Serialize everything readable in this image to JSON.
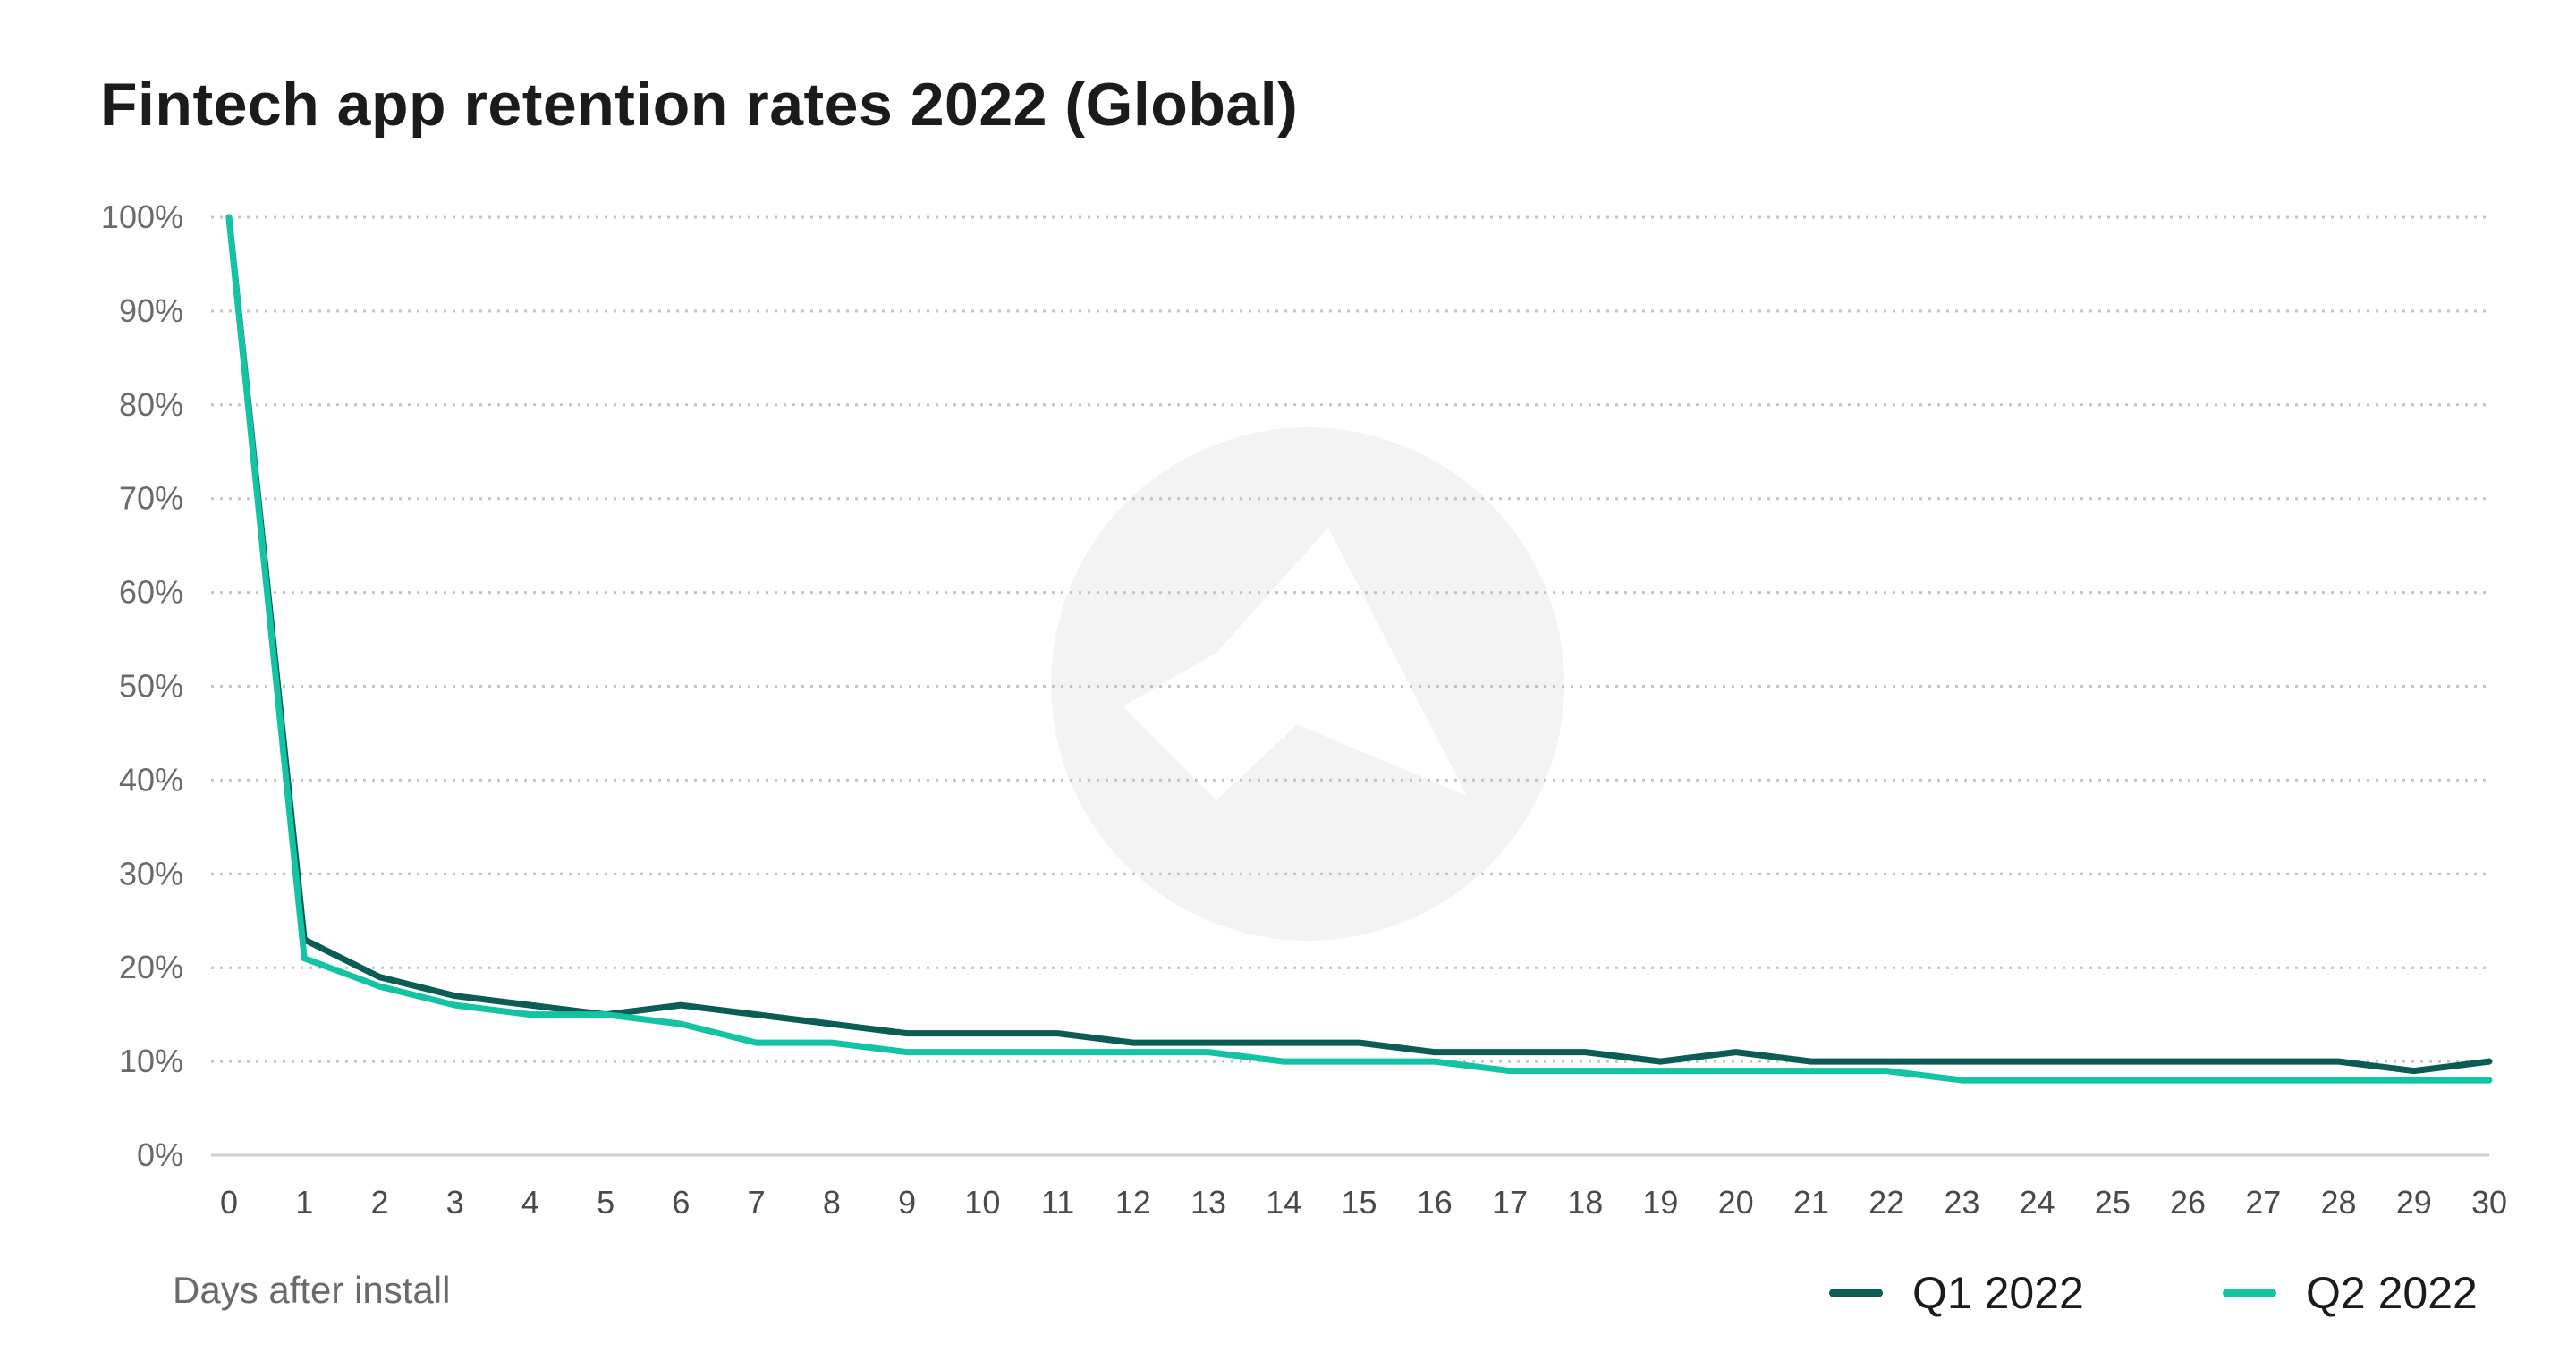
{
  "chart_data": {
    "type": "line",
    "title": "Fintech app retention rates 2022 (Global)",
    "xlabel": "Days after install",
    "ylabel": "",
    "x": [
      0,
      1,
      2,
      3,
      4,
      5,
      6,
      7,
      8,
      9,
      10,
      11,
      12,
      13,
      14,
      15,
      16,
      17,
      18,
      19,
      20,
      21,
      22,
      23,
      24,
      25,
      26,
      27,
      28,
      29,
      30
    ],
    "ylim": [
      0,
      100
    ],
    "yticks": [
      "0%",
      "10%",
      "20%",
      "30%",
      "40%",
      "50%",
      "60%",
      "70%",
      "80%",
      "90%",
      "100%"
    ],
    "grid": true,
    "legend_position": "bottom-right",
    "series": [
      {
        "name": "Q1 2022",
        "color": "#0b5c55",
        "values": [
          100,
          23,
          19,
          17,
          16,
          15,
          16,
          15,
          14,
          13,
          13,
          13,
          12,
          12,
          12,
          12,
          11,
          11,
          11,
          10,
          11,
          10,
          10,
          10,
          10,
          10,
          10,
          10,
          10,
          9,
          10
        ]
      },
      {
        "name": "Q2 2022",
        "color": "#12c4a4",
        "values": [
          100,
          21,
          18,
          16,
          15,
          15,
          14,
          12,
          12,
          11,
          11,
          11,
          11,
          11,
          10,
          10,
          10,
          9,
          9,
          9,
          9,
          9,
          9,
          8,
          8,
          8,
          8,
          8,
          8,
          8,
          8
        ]
      }
    ]
  }
}
